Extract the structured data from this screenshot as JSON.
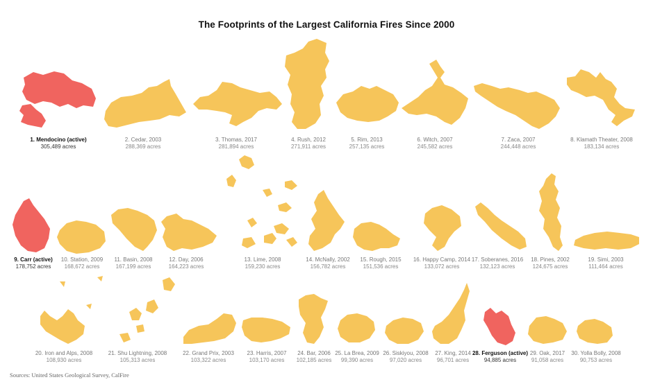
{
  "title": "The Footprints of the Largest California Fires Since 2000",
  "source": "Sources: United States Geological Survey, CalFire",
  "colors": {
    "inactive": "#f6c55a",
    "active": "#f0645f"
  },
  "fires": [
    {
      "name": "1. Mendocino (active)",
      "acres": "305,489 acres",
      "active": true
    },
    {
      "name": "2. Cedar, 2003",
      "acres": "288,369 acres",
      "active": false
    },
    {
      "name": "3. Thomas, 2017",
      "acres": "281,894 acres",
      "active": false
    },
    {
      "name": "4. Rush, 2012",
      "acres": "271,911 acres",
      "active": false
    },
    {
      "name": "5. Rim, 2013",
      "acres": "257,135 acres",
      "active": false
    },
    {
      "name": "6. Witch, 2007",
      "acres": "245,582 acres",
      "active": false
    },
    {
      "name": "7. Zaca, 2007",
      "acres": "244,448 acres",
      "active": false
    },
    {
      "name": "8. Klamath Theater, 2008",
      "acres": "183,134 acres",
      "active": false
    },
    {
      "name": "9. Carr (active)",
      "acres": "178,752 acres",
      "active": true
    },
    {
      "name": "10. Station, 2009",
      "acres": "168,672 acres",
      "active": false
    },
    {
      "name": "11. Basin, 2008",
      "acres": "167,199 acres",
      "active": false
    },
    {
      "name": "12. Day, 2006",
      "acres": "164,223 acres",
      "active": false
    },
    {
      "name": "13. Lime, 2008",
      "acres": "159,230 acres",
      "active": false
    },
    {
      "name": "14. McNally, 2002",
      "acres": "156,782 acres",
      "active": false
    },
    {
      "name": "15. Rough, 2015",
      "acres": "151,536 acres",
      "active": false
    },
    {
      "name": "16. Happy Camp, 2014",
      "acres": "133,072 acres",
      "active": false
    },
    {
      "name": "17. Soberanes, 2016",
      "acres": "132,123 acres",
      "active": false
    },
    {
      "name": "18. Pines, 2002",
      "acres": "124,675 acres",
      "active": false
    },
    {
      "name": "19. Simi, 2003",
      "acres": "111,464 acres",
      "active": false
    },
    {
      "name": "20. Iron and Alps, 2008",
      "acres": "108,930 acres",
      "active": false
    },
    {
      "name": "21. Shu Lightning, 2008",
      "acres": "105,313 acres",
      "active": false
    },
    {
      "name": "22. Grand Prix, 2003",
      "acres": "103,322 acres",
      "active": false
    },
    {
      "name": "23. Harris, 2007",
      "acres": "103,170 acres",
      "active": false
    },
    {
      "name": "24. Bar, 2006",
      "acres": "102,185 acres",
      "active": false
    },
    {
      "name": "25. La Brea, 2009",
      "acres": "99,390 acres",
      "active": false
    },
    {
      "name": "26. Siskiyou, 2008",
      "acres": "97,020 acres",
      "active": false
    },
    {
      "name": "27. King, 2014",
      "acres": "96,701 acres",
      "active": false
    },
    {
      "name": "28. Ferguson (active)",
      "acres": "94,885 acres",
      "active": true
    },
    {
      "name": "29. Oak, 2017",
      "acres": "91,058 acres",
      "active": false
    },
    {
      "name": "30. Yolla Bolly, 2008",
      "acres": "90,753 acres",
      "active": false
    }
  ]
}
